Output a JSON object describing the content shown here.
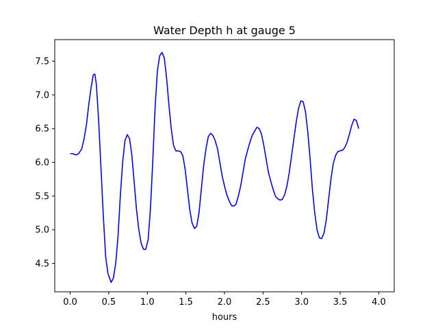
{
  "chart_data": {
    "type": "line",
    "title": "Water Depth h at gauge 5",
    "xlabel": "hours",
    "ylabel": "",
    "xlim": [
      -0.2,
      4.2
    ],
    "ylim": [
      4.08,
      7.82
    ],
    "xticks": [
      0.0,
      0.5,
      1.0,
      1.5,
      2.0,
      2.5,
      3.0,
      3.5,
      4.0
    ],
    "xtick_labels": [
      "0.0",
      "0.5",
      "1.0",
      "1.5",
      "2.0",
      "2.5",
      "3.0",
      "3.5",
      "4.0"
    ],
    "yticks": [
      4.5,
      5.0,
      5.5,
      6.0,
      6.5,
      7.0,
      7.5
    ],
    "ytick_labels": [
      "4.5",
      "5.0",
      "5.5",
      "6.0",
      "6.5",
      "7.0",
      "7.5"
    ],
    "grid": false,
    "line_color": "#0000ff",
    "series": [
      {
        "points": [
          [
            0.0,
            6.13
          ],
          [
            0.03,
            6.13
          ],
          [
            0.05,
            6.12
          ],
          [
            0.08,
            6.11
          ],
          [
            0.11,
            6.13
          ],
          [
            0.15,
            6.2
          ],
          [
            0.18,
            6.35
          ],
          [
            0.21,
            6.55
          ],
          [
            0.24,
            6.85
          ],
          [
            0.27,
            7.1
          ],
          [
            0.3,
            7.3
          ],
          [
            0.32,
            7.31
          ],
          [
            0.34,
            7.15
          ],
          [
            0.37,
            6.6
          ],
          [
            0.4,
            5.9
          ],
          [
            0.43,
            5.2
          ],
          [
            0.46,
            4.6
          ],
          [
            0.49,
            4.35
          ],
          [
            0.53,
            4.22
          ],
          [
            0.56,
            4.28
          ],
          [
            0.59,
            4.5
          ],
          [
            0.62,
            4.9
          ],
          [
            0.65,
            5.5
          ],
          [
            0.68,
            6.0
          ],
          [
            0.71,
            6.32
          ],
          [
            0.74,
            6.41
          ],
          [
            0.77,
            6.35
          ],
          [
            0.8,
            6.1
          ],
          [
            0.83,
            5.7
          ],
          [
            0.86,
            5.3
          ],
          [
            0.89,
            5.0
          ],
          [
            0.92,
            4.8
          ],
          [
            0.95,
            4.71
          ],
          [
            0.98,
            4.71
          ],
          [
            1.01,
            4.85
          ],
          [
            1.04,
            5.3
          ],
          [
            1.07,
            6.0
          ],
          [
            1.1,
            6.8
          ],
          [
            1.13,
            7.35
          ],
          [
            1.16,
            7.58
          ],
          [
            1.19,
            7.63
          ],
          [
            1.22,
            7.55
          ],
          [
            1.25,
            7.25
          ],
          [
            1.28,
            6.85
          ],
          [
            1.31,
            6.5
          ],
          [
            1.34,
            6.25
          ],
          [
            1.37,
            6.17
          ],
          [
            1.4,
            6.17
          ],
          [
            1.43,
            6.16
          ],
          [
            1.46,
            6.1
          ],
          [
            1.49,
            5.9
          ],
          [
            1.52,
            5.6
          ],
          [
            1.55,
            5.3
          ],
          [
            1.58,
            5.1
          ],
          [
            1.61,
            5.02
          ],
          [
            1.64,
            5.05
          ],
          [
            1.67,
            5.25
          ],
          [
            1.7,
            5.6
          ],
          [
            1.73,
            5.95
          ],
          [
            1.76,
            6.2
          ],
          [
            1.79,
            6.38
          ],
          [
            1.82,
            6.43
          ],
          [
            1.85,
            6.4
          ],
          [
            1.88,
            6.32
          ],
          [
            1.91,
            6.2
          ],
          [
            1.94,
            6.0
          ],
          [
            1.97,
            5.8
          ],
          [
            2.0,
            5.65
          ],
          [
            2.03,
            5.52
          ],
          [
            2.06,
            5.43
          ],
          [
            2.09,
            5.36
          ],
          [
            2.12,
            5.35
          ],
          [
            2.15,
            5.38
          ],
          [
            2.18,
            5.5
          ],
          [
            2.21,
            5.65
          ],
          [
            2.24,
            5.85
          ],
          [
            2.27,
            6.05
          ],
          [
            2.3,
            6.18
          ],
          [
            2.33,
            6.3
          ],
          [
            2.36,
            6.4
          ],
          [
            2.39,
            6.46
          ],
          [
            2.42,
            6.52
          ],
          [
            2.45,
            6.5
          ],
          [
            2.48,
            6.42
          ],
          [
            2.51,
            6.25
          ],
          [
            2.54,
            6.05
          ],
          [
            2.57,
            5.85
          ],
          [
            2.6,
            5.72
          ],
          [
            2.63,
            5.6
          ],
          [
            2.66,
            5.5
          ],
          [
            2.69,
            5.46
          ],
          [
            2.72,
            5.44
          ],
          [
            2.75,
            5.45
          ],
          [
            2.78,
            5.52
          ],
          [
            2.81,
            5.65
          ],
          [
            2.84,
            5.85
          ],
          [
            2.87,
            6.1
          ],
          [
            2.9,
            6.35
          ],
          [
            2.93,
            6.6
          ],
          [
            2.96,
            6.8
          ],
          [
            2.99,
            6.91
          ],
          [
            3.02,
            6.9
          ],
          [
            3.05,
            6.75
          ],
          [
            3.08,
            6.45
          ],
          [
            3.11,
            6.05
          ],
          [
            3.14,
            5.6
          ],
          [
            3.17,
            5.25
          ],
          [
            3.2,
            5.0
          ],
          [
            3.23,
            4.88
          ],
          [
            3.26,
            4.87
          ],
          [
            3.29,
            4.95
          ],
          [
            3.32,
            5.15
          ],
          [
            3.35,
            5.45
          ],
          [
            3.38,
            5.75
          ],
          [
            3.41,
            5.98
          ],
          [
            3.44,
            6.1
          ],
          [
            3.47,
            6.16
          ],
          [
            3.5,
            6.17
          ],
          [
            3.53,
            6.18
          ],
          [
            3.56,
            6.22
          ],
          [
            3.59,
            6.3
          ],
          [
            3.62,
            6.42
          ],
          [
            3.65,
            6.55
          ],
          [
            3.68,
            6.64
          ],
          [
            3.71,
            6.62
          ],
          [
            3.74,
            6.5
          ]
        ]
      }
    ]
  }
}
